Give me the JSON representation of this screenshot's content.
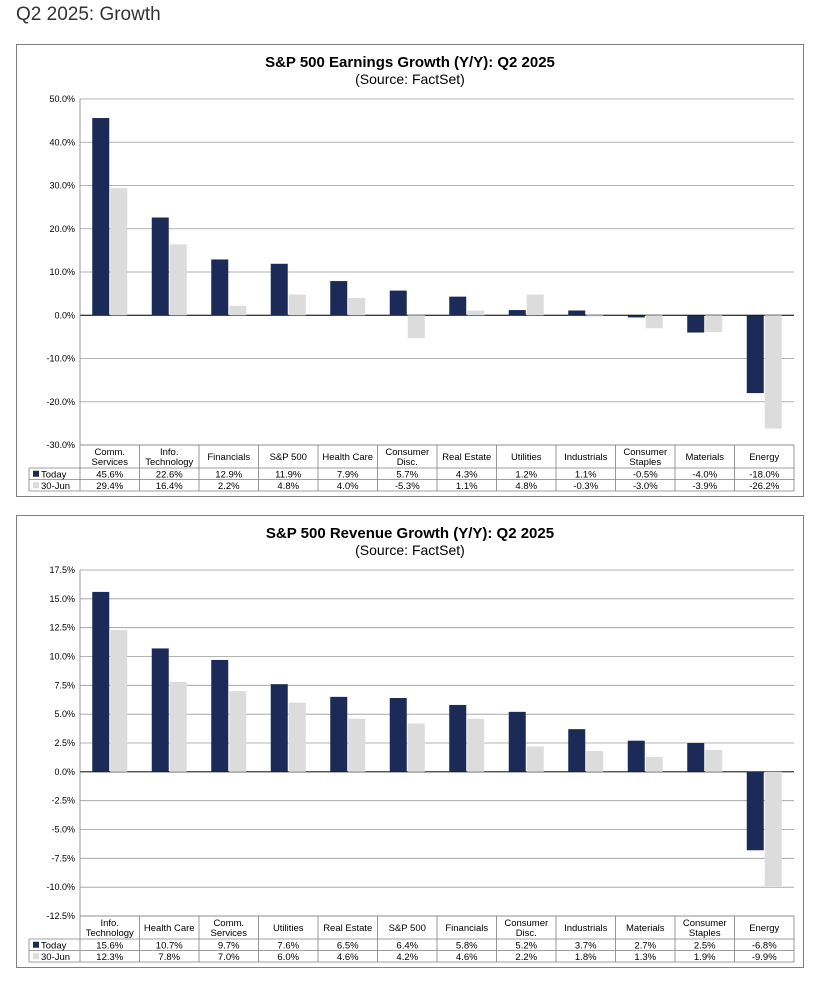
{
  "page": {
    "heading": "Q2 2025: Growth"
  },
  "colors": {
    "today": "#1b2a57",
    "jun30": "#dcdcdc",
    "grid": "#9a9a9a"
  },
  "chart_data": [
    {
      "id": "earnings",
      "type": "bar",
      "title": "S&P 500 Earnings Growth (Y/Y): Q2 2025",
      "subtitle": "(Source: FactSet)",
      "ylim": [
        -30,
        50
      ],
      "ystep": 10,
      "ytick_decimals": 1,
      "grid": true,
      "legend": "table-bottom",
      "categories": [
        "Comm.\nServices",
        "Info.\nTechnology",
        "Financials",
        "S&P 500",
        "Health Care",
        "Consumer\nDisc.",
        "Real Estate",
        "Utilities",
        "Industrials",
        "Consumer\nStaples",
        "Materials",
        "Energy"
      ],
      "series": [
        {
          "name": "Today",
          "values": [
            45.6,
            22.6,
            12.9,
            11.9,
            7.9,
            5.7,
            4.3,
            1.2,
            1.1,
            -0.5,
            -4.0,
            -18.0
          ],
          "labels": [
            "45.6%",
            "22.6%",
            "12.9%",
            "11.9%",
            "7.9%",
            "5.7%",
            "4.3%",
            "1.2%",
            "1.1%",
            "-0.5%",
            "-4.0%",
            "-18.0%"
          ]
        },
        {
          "name": "30-Jun",
          "values": [
            29.4,
            16.4,
            2.2,
            4.8,
            4.0,
            -5.3,
            1.1,
            4.8,
            -0.3,
            -3.0,
            -3.9,
            -26.2
          ],
          "labels": [
            "29.4%",
            "16.4%",
            "2.2%",
            "4.8%",
            "4.0%",
            "-5.3%",
            "1.1%",
            "4.8%",
            "-0.3%",
            "-3.0%",
            "-3.9%",
            "-26.2%"
          ]
        }
      ]
    },
    {
      "id": "revenue",
      "type": "bar",
      "title": "S&P 500 Revenue Growth (Y/Y): Q2 2025",
      "subtitle": "(Source: FactSet)",
      "ylim": [
        -12.5,
        17.5
      ],
      "ystep": 2.5,
      "ytick_decimals": 1,
      "grid": true,
      "legend": "table-bottom",
      "categories": [
        "Info.\nTechnology",
        "Health Care",
        "Comm.\nServices",
        "Utilities",
        "Real Estate",
        "S&P 500",
        "Financials",
        "Consumer\nDisc.",
        "Industrials",
        "Materials",
        "Consumer\nStaples",
        "Energy"
      ],
      "series": [
        {
          "name": "Today",
          "values": [
            15.6,
            10.7,
            9.7,
            7.6,
            6.5,
            6.4,
            5.8,
            5.2,
            3.7,
            2.7,
            2.5,
            -6.8
          ],
          "labels": [
            "15.6%",
            "10.7%",
            "9.7%",
            "7.6%",
            "6.5%",
            "6.4%",
            "5.8%",
            "5.2%",
            "3.7%",
            "2.7%",
            "2.5%",
            "-6.8%"
          ]
        },
        {
          "name": "30-Jun",
          "values": [
            12.3,
            7.8,
            7.0,
            6.0,
            4.6,
            4.2,
            4.6,
            2.2,
            1.8,
            1.3,
            1.9,
            -9.9
          ],
          "labels": [
            "12.3%",
            "7.8%",
            "7.0%",
            "6.0%",
            "4.6%",
            "4.2%",
            "4.6%",
            "2.2%",
            "1.8%",
            "1.3%",
            "1.9%",
            "-9.9%"
          ]
        }
      ]
    }
  ]
}
